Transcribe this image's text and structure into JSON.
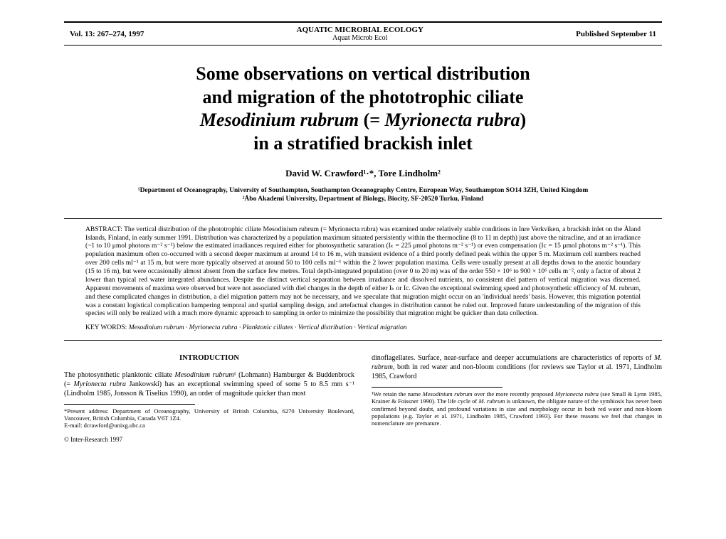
{
  "header": {
    "vol": "Vol. 13: 267–274, 1997",
    "journal": "AQUATIC MICROBIAL ECOLOGY",
    "abbrev": "Aquat Microb Ecol",
    "published": "Published September 11"
  },
  "title": {
    "line1": "Some observations on vertical distribution",
    "line2": "and migration of the phototrophic ciliate",
    "line3a": "Mesodinium rubrum",
    "line3b": " (= ",
    "line3c": "Myrionecta rubra",
    "line3d": ")",
    "line4": "in a stratified brackish inlet"
  },
  "authors": "David W. Crawford¹·*, Tore Lindholm²",
  "affiliations": {
    "a1": "¹Department of Oceanography, University of Southampton, Southampton Oceanography Centre, European Way, Southampton SO14 3ZH, United Kingdom",
    "a2": "²Åbo Akademi University, Department of Biology, Biocity, SF-20520 Turku, Finland"
  },
  "abstract": {
    "label": "ABSTRACT:",
    "body": " The vertical distribution of the phototrophic ciliate Mesodinium rubrum (= Myrionecta rubra) was examined under relatively stable conditions in Inre Verkviken, a brackish inlet on the Åland Islands, Finland, in early summer 1991. Distribution was characterized by a population maximum situated persistently within the thermocline (8 to 11 m depth) just above the nitracline, and at an irradiance (~1 to 10 μmol photons m⁻² s⁻¹) below the estimated irradiances required either for photosynthetic saturation (Iₖ = 225 μmol photons m⁻² s⁻¹) or even compensation (Ic = 15 μmol photons m⁻² s⁻¹). This population maximum often co-occurred with a second deeper maximum at around 14 to 16 m, with transient evidence of a third poorly defined peak within the upper 5 m. Maximum cell numbers reached over 200 cells ml⁻¹ at 15 m, but were more typically observed at around 50 to 100 cells ml⁻¹ within the 2 lower population maxima. Cells were usually present at all depths down to the anoxic boundary (15 to 16 m), but were occasionally almost absent from the surface few metres. Total depth-integrated population (over 0 to 20 m) was of the order 550 × 10⁶ to 900 × 10⁶ cells m⁻², only a factor of about 2 lower than typical red water integrated abundances. Despite the distinct vertical separation between irradiance and dissolved nutrients, no consistent diel pattern of vertical migration was discerned. Apparent movements of maxima were observed but were not associated with diel changes in the depth of either Iₖ or Ic. Given the exceptional swimming speed and photosynthetic efficiency of M. rubrum, and these complicated changes in distribution, a diel migration pattern may not be necessary, and we speculate that migration might occur on an 'individual needs' basis. However, this migration potential was a constant logistical complication hampering temporal and spatial sampling design, and artefactual changes in distribution cannot be ruled out. Improved future understanding of the migration of this species will only be realized with a much more dynamic approach to sampling in order to minimize the possibility that migration might be quicker than data collection."
  },
  "keywords": {
    "label": "KEY WORDS:",
    "body": "  Mesodinium rubrum · Myrionecta rubra · Planktonic ciliates · Vertical distribution · Vertical migration"
  },
  "intro": {
    "head": "INTRODUCTION",
    "p1a": "The photosynthetic planktonic ciliate ",
    "p1b": "Mesodinium rubrum",
    "p1c": "¹ (Lohmann) Hamburger & Buddenbrock (= ",
    "p1d": "Myrionecta rubra",
    "p1e": " Jankowski) has an exceptional swimming speed of some 5 to 8.5 mm s⁻¹ (Lindholm 1985, Jonsson & Tiselius 1990), an order of magnitude quicker than most"
  },
  "col2": {
    "p1a": "dinoflagellates. Surface, near-surface and deeper accumulations are characteristics of reports of ",
    "p1b": "M. rubrum",
    "p1c": ", both in red water and non-bloom conditions (for reviews see Taylor et al. 1971, Lindholm 1985, Crawford"
  },
  "footnoteLeft": {
    "text": "*Present address: Department of Oceanography, University of British Columbia, 6270 University Boulevard, Vancouver, British Columbia, Canada V6T 1Z4.",
    "email": "E-mail: dcrawford@unixg.ubc.ca"
  },
  "footnoteRight": {
    "t1": "¹We retain the name ",
    "t2": "Mesodinium rubrum",
    "t3": " over the more recently proposed ",
    "t4": "Myrionecta rubra",
    "t5": " (see Small & Lynn 1985, Krainer & Foissner 1990). The life cycle of ",
    "t6": "M. rubrum",
    "t7": " is unknown, the obligate nature of the symbiosis has never been confirmed beyond doubt, and profound variations in size and morphology occur in both red water and non-bloom populations (e.g. Taylor et al. 1971, Lindholm 1985, Crawford 1993). For these reasons we feel that changes in nomenclature are premature."
  },
  "copyright": "© Inter-Research 1997"
}
